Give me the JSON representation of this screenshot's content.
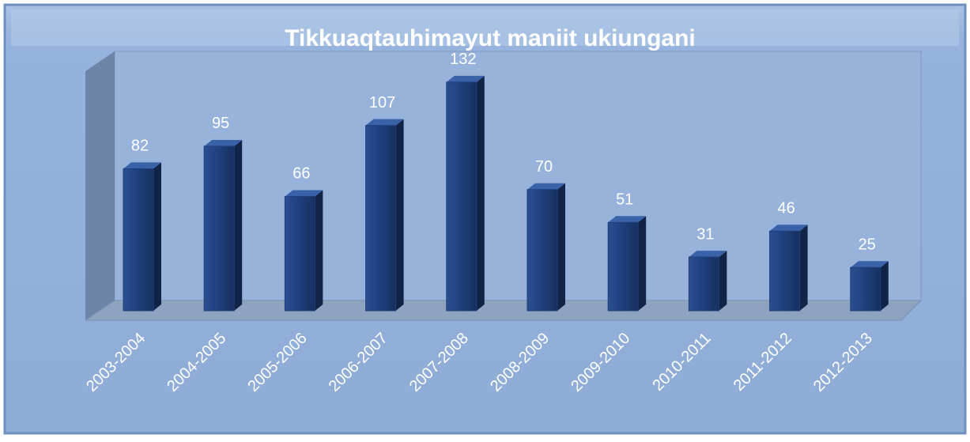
{
  "chart_data": {
    "type": "bar",
    "title": "Tikkuaqtauhimayut maniit ukiungani",
    "categories": [
      "2003-2004",
      "2004-2005",
      "2005-2006",
      "2006-2007",
      "2007-2008",
      "2008-2009",
      "2009-2010",
      "2010-2011",
      "2011-2012",
      "2012-2013"
    ],
    "values": [
      82,
      95,
      66,
      107,
      132,
      70,
      51,
      31,
      46,
      25
    ],
    "color": "#1f3f7c"
  }
}
